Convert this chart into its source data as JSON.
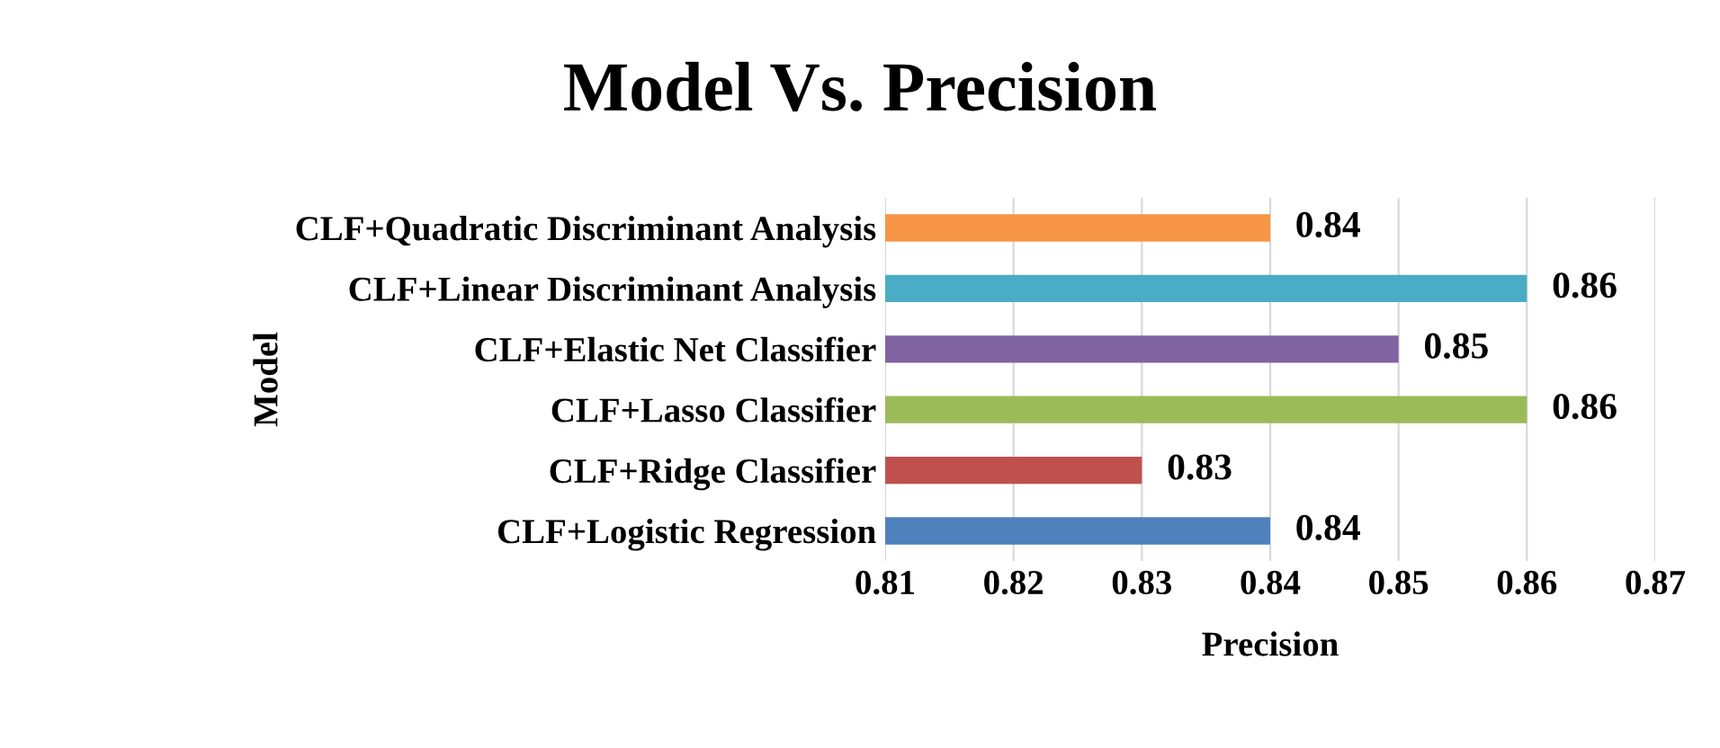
{
  "chart_data": {
    "type": "bar",
    "orientation": "horizontal",
    "title": "Model Vs. Precision",
    "xlabel": "Precision",
    "ylabel": "Model",
    "categories": [
      "CLF+Quadratic Discriminant Analysis",
      "CLF+Linear Discriminant Analysis",
      "CLF+Elastic Net Classifier",
      "CLF+Lasso Classifier",
      "CLF+Ridge Classifier",
      "CLF+Logistic Regression"
    ],
    "values": [
      0.84,
      0.86,
      0.85,
      0.86,
      0.83,
      0.84
    ],
    "colors": [
      "#f79646",
      "#4bacc6",
      "#8064a2",
      "#9bbb59",
      "#c0504d",
      "#4f81bd"
    ],
    "xlim": [
      0.81,
      0.87
    ],
    "xticks": [
      0.81,
      0.82,
      0.83,
      0.84,
      0.85,
      0.86,
      0.87
    ],
    "grid": "x",
    "data_labels": true
  }
}
